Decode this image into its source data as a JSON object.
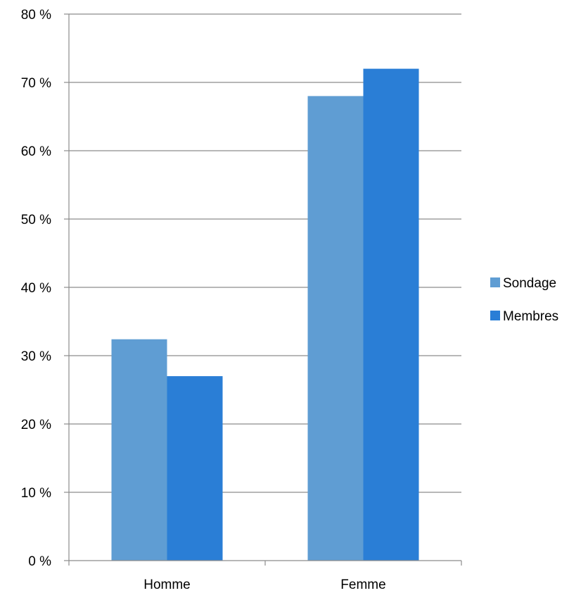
{
  "chart_data": {
    "type": "bar",
    "categories": [
      "Homme",
      "Femme"
    ],
    "series": [
      {
        "name": "Sondage",
        "values": [
          32.4,
          68.0
        ],
        "color": "#5f9dd3"
      },
      {
        "name": "Membres",
        "values": [
          27.0,
          72.0
        ],
        "color": "#2a7ed6"
      }
    ],
    "yticks": [
      "0 %",
      "10 %",
      "20 %",
      "30 %",
      "40 %",
      "50 %",
      "60 %",
      "70 %",
      "80 %"
    ],
    "ylim": [
      0,
      80
    ],
    "grid": true,
    "legend": "right",
    "title": "",
    "xlabel": "",
    "ylabel": ""
  }
}
